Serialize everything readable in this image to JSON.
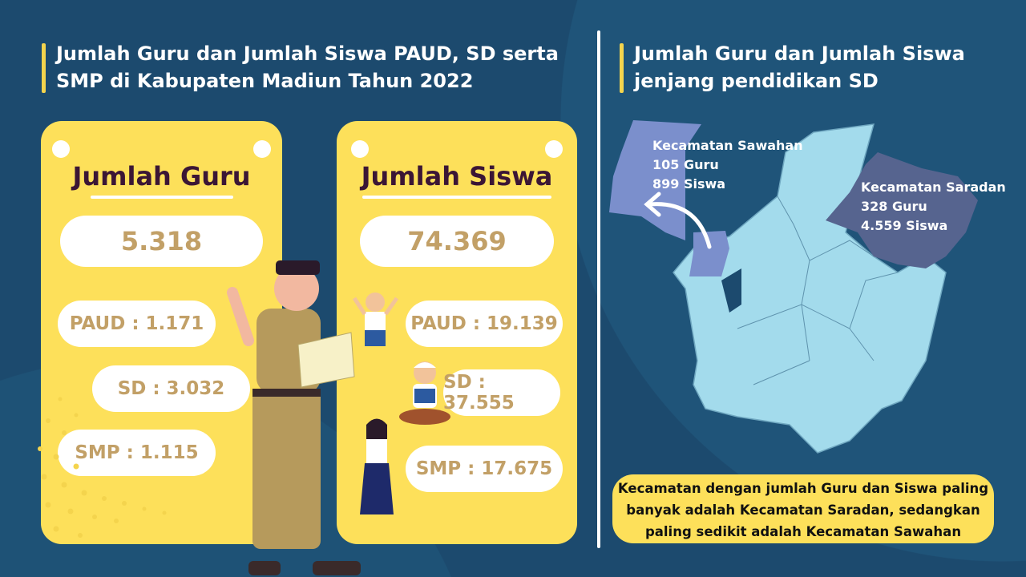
{
  "left_title": "Jumlah Guru dan Jumlah Siswa PAUD, SD serta SMP di Kabupaten Madiun Tahun 2022",
  "guru": {
    "heading": "Jumlah Guru",
    "total": "5.318",
    "paud": "PAUD : 1.171",
    "sd": "SD : 3.032",
    "smp": "SMP : 1.115"
  },
  "siswa": {
    "heading": "Jumlah Siswa",
    "total": "74.369",
    "paud": "PAUD : 19.139",
    "sd": "SD : 37.555",
    "smp": "SMP : 17.675"
  },
  "right_title": "Jumlah Guru dan Jumlah Siswa jenjang pendidikan SD",
  "map": {
    "sawahan": {
      "name": "Kecamatan Sawahan",
      "guru": "105 Guru",
      "siswa": "899 Siswa",
      "color": "#7b8fcc"
    },
    "saradan": {
      "name": "Kecamatan Saradan",
      "guru": "328 Guru",
      "siswa": "4.559 Siswa",
      "color": "#56648f"
    },
    "base_color": "#a3dbec"
  },
  "note": "Kecamatan dengan jumlah Guru dan Siswa paling banyak adalah Kecamatan Saradan, sedangkan paling sedikit adalah Kecamatan Sawahan",
  "colors": {
    "background": "#1c4a6e",
    "card": "#fde05a",
    "accent": "#f4d44d",
    "number": "#c2a067",
    "heading": "#3b1635"
  }
}
